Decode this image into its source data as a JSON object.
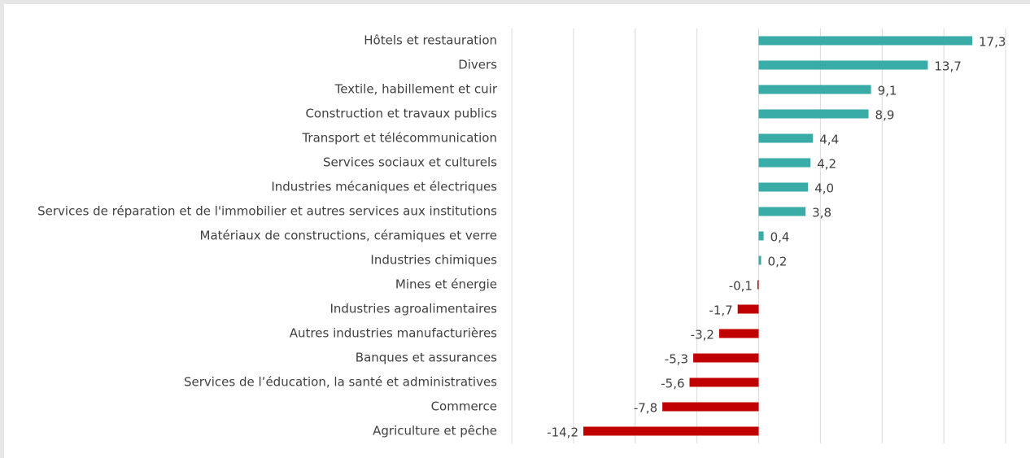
{
  "chart_data": {
    "type": "barh",
    "categories": [
      "Hôtels et restauration",
      "Divers",
      "Textile, habillement et cuir",
      "Construction et travaux publics",
      "Transport et télécommunication",
      "Services sociaux et culturels",
      "Industries mécaniques et électriques",
      "Services de réparation et de l'immobilier et autres services aux institutions",
      "Matériaux de constructions, céramiques et verre",
      "Industries chimiques",
      "Mines et énergie",
      "Industries agroalimentaires",
      "Autres industries manufacturières",
      "Banques et assurances",
      "Services de l’éducation, la santé et administratives",
      "Commerce",
      "Agriculture et pêche"
    ],
    "values": [
      17.3,
      13.7,
      9.1,
      8.9,
      4.4,
      4.2,
      4.0,
      3.8,
      0.4,
      0.2,
      -0.1,
      -1.7,
      -3.2,
      -5.3,
      -5.6,
      -7.8,
      -14.2
    ],
    "value_labels": [
      "17,3",
      "13,7",
      "9,1",
      "8,9",
      "4,4",
      "4,2",
      "4,0",
      "3,8",
      "0,4",
      "0,2",
      "-0,1",
      "-1,7",
      "-3,2",
      "-5,3",
      "-5,6",
      "-7,8",
      "-14,2"
    ],
    "colors": [
      "#3aaca7",
      "#3aaca7",
      "#3aaca7",
      "#3aaca7",
      "#3aaca7",
      "#3aaca7",
      "#3aaca7",
      "#3aaca7",
      "#3aaca7",
      "#3aaca7",
      "#c00000",
      "#c00000",
      "#c00000",
      "#c00000",
      "#c00000",
      "#c00000",
      "#c00000"
    ],
    "xlim": [
      -20,
      20
    ],
    "xticks": [
      -20,
      -15,
      -10,
      -5,
      0,
      5,
      10,
      15,
      20
    ],
    "grid": true
  }
}
